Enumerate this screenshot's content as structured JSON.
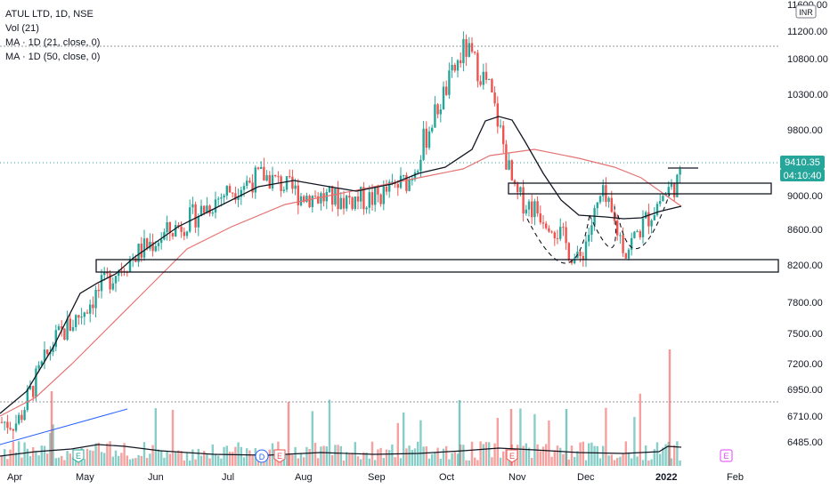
{
  "header": {
    "title": "ATUL LTD, 1D, NSE",
    "indicators": [
      "Vol (21)",
      "MA · 1D (21, close, 0)",
      "MA · 1D (50, close, 0)"
    ]
  },
  "price_axis": {
    "currency": "INR",
    "labels": [
      "11600.00",
      "11200.00",
      "10800.00",
      "10300.00",
      "9800.00",
      "9000.00",
      "8600.00",
      "8200.00",
      "7800.00",
      "7500.00",
      "7200.00",
      "6950.00",
      "6710.00",
      "6485.00"
    ]
  },
  "current_price": {
    "value": "9410.35",
    "countdown": "04:10:40"
  },
  "colors": {
    "up": "#26a69a",
    "down": "#ef5350",
    "ma21": "#131722",
    "ma50": "#e57373",
    "price_tag": "#26a69a",
    "countdown_tag": "#26a69a",
    "trendline": "#2962ff"
  },
  "events": [
    {
      "label": "E",
      "type": "earnings"
    },
    {
      "label": "D",
      "type": "dividend"
    },
    {
      "label": "E",
      "type": "earnings"
    },
    {
      "label": "E",
      "type": "earnings"
    },
    {
      "label": "E",
      "type": "earnings-upcoming"
    }
  ],
  "chart_data": {
    "type": "candlestick",
    "symbol": "ATUL LTD",
    "interval": "1D",
    "exchange": "NSE",
    "x_ticks": [
      "Apr",
      "May",
      "Jun",
      "Jul",
      "Aug",
      "Sep",
      "Oct",
      "Nov",
      "Dec",
      "2022",
      "Feb"
    ],
    "ylim": [
      6400,
      11700
    ],
    "series": [
      {
        "name": "MA · 1D (21, close, 0)",
        "points": [
          [
            "Apr",
            6750
          ],
          [
            "May",
            7300
          ],
          [
            "May",
            8000
          ],
          [
            "Jun",
            8250
          ],
          [
            "Jul",
            8700
          ],
          [
            "Jul",
            8880
          ],
          [
            "Aug",
            9050
          ],
          [
            "Sep",
            8980
          ],
          [
            "Sep",
            9250
          ],
          [
            "Oct",
            9400
          ],
          [
            "Oct",
            10050
          ],
          [
            "Nov",
            9500
          ],
          [
            "Nov",
            9000
          ],
          [
            "Dec",
            8750
          ],
          [
            "Dec",
            8780
          ],
          [
            "2022",
            8900
          ]
        ]
      },
      {
        "name": "MA · 1D (50, close, 0)",
        "points": [
          [
            "Apr",
            6700
          ],
          [
            "May",
            7050
          ],
          [
            "Jun",
            7700
          ],
          [
            "Jul",
            8400
          ],
          [
            "Aug",
            8850
          ],
          [
            "Sep",
            9050
          ],
          [
            "Oct",
            9250
          ],
          [
            "Oct",
            9450
          ],
          [
            "Nov",
            9450
          ],
          [
            "Dec",
            9200
          ],
          [
            "Dec",
            9000
          ],
          [
            "2022",
            8800
          ]
        ]
      }
    ],
    "current_price": 9410.35,
    "approx_price_path": [
      [
        "Apr",
        6650
      ],
      [
        "Apr",
        7400
      ],
      [
        "May",
        7700
      ],
      [
        "May",
        8150
      ],
      [
        "Jun",
        8450
      ],
      [
        "Jun",
        8700
      ],
      [
        "Jul",
        9050
      ],
      [
        "Jul",
        9250
      ],
      [
        "Aug",
        9000
      ],
      [
        "Aug",
        8950
      ],
      [
        "Sep",
        8950
      ],
      [
        "Sep",
        9200
      ],
      [
        "Oct",
        10200
      ],
      [
        "Oct",
        10950
      ],
      [
        "Oct",
        10400
      ],
      [
        "Nov",
        9000
      ],
      [
        "Nov",
        8700
      ],
      [
        "Dec",
        8200
      ],
      [
        "Dec",
        9000
      ],
      [
        "Dec",
        8350
      ],
      [
        "2022",
        9000
      ],
      [
        "2022",
        9410
      ]
    ]
  }
}
